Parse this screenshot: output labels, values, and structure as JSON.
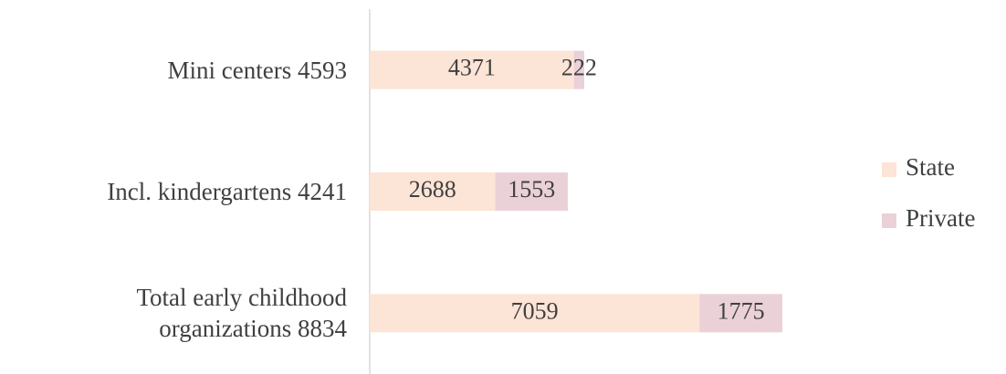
{
  "chart_data": {
    "type": "stacked-bar-horizontal",
    "categories": [
      "Mini centers 4593",
      "Incl. kindergartens 4241",
      "Total early childhood organizations 8834"
    ],
    "series": [
      {
        "name": "State",
        "color": "#fce4d6",
        "values": [
          4371,
          2688,
          7059
        ]
      },
      {
        "name": "Private",
        "color": "#ead1d8",
        "values": [
          222,
          1553,
          1775
        ]
      }
    ],
    "legend": "right"
  }
}
